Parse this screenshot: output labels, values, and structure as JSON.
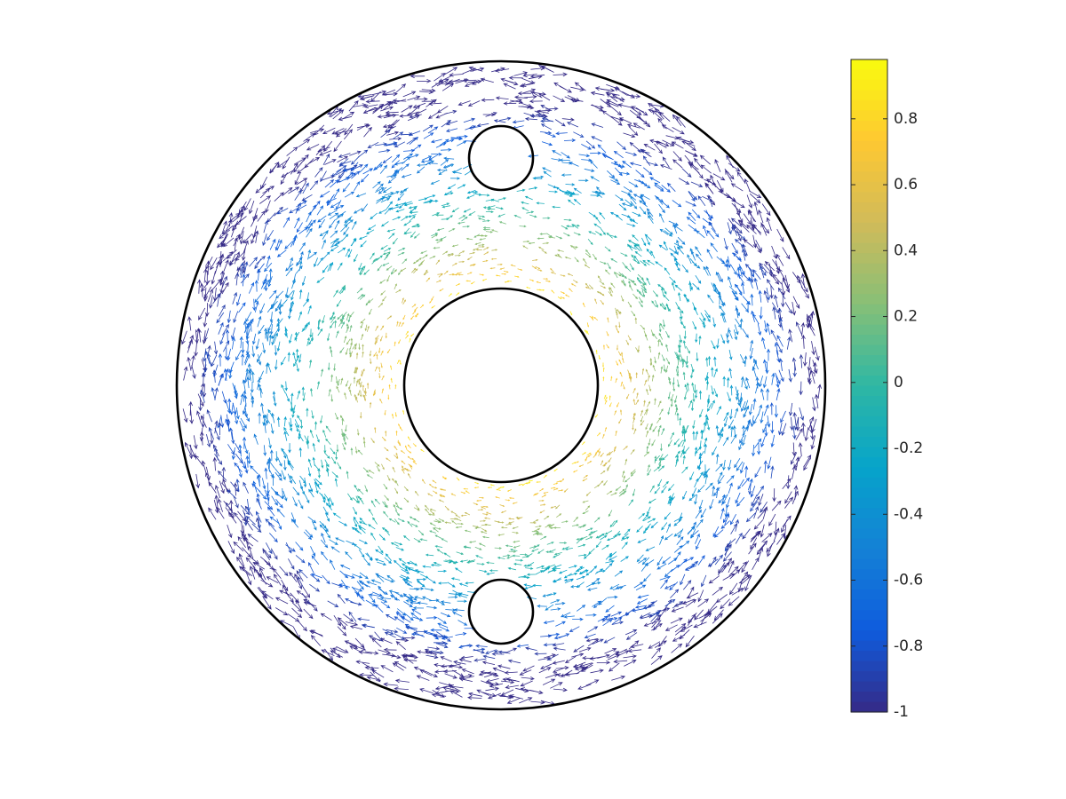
{
  "chart_data": {
    "type": "quiver",
    "colormap": "parula",
    "colorbar": {
      "ylim": [
        -1,
        0.98
      ],
      "yticks": [
        -1,
        -0.8,
        -0.6,
        -0.4,
        -0.2,
        0,
        0.2,
        0.4,
        0.6,
        0.8
      ]
    }
  }
}
